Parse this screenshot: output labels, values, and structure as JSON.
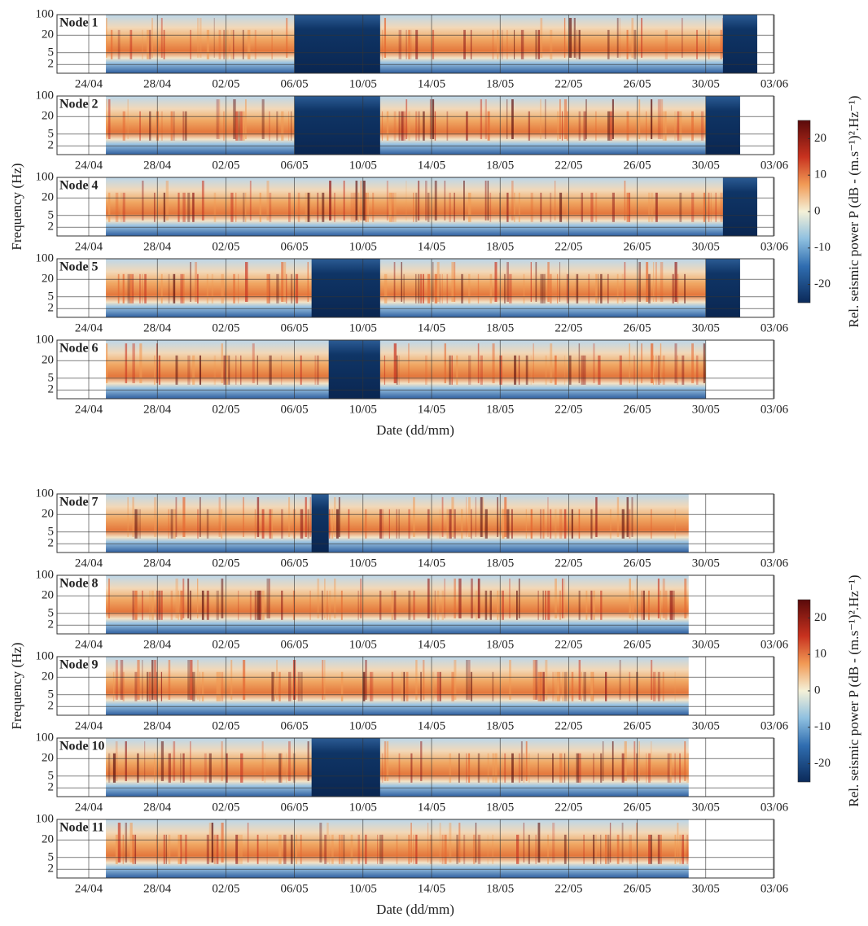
{
  "chart_data": [
    {
      "type": "heatmap",
      "x_label": "Date (dd/mm)",
      "y_label": "Frequency (Hz)",
      "xticks": [
        "24/04",
        "28/04",
        "02/05",
        "06/05",
        "10/05",
        "14/05",
        "18/05",
        "22/05",
        "26/05",
        "30/05",
        "03/06"
      ],
      "ylim": [
        1,
        100
      ],
      "yticks": [
        100,
        20,
        5,
        2
      ],
      "log_y": true,
      "grid": true,
      "colorbar": {
        "label": "Rel. seismic power P (dB - (m.s⁻¹)².Hz⁻¹)",
        "clim": [
          -25,
          25
        ],
        "ticks": [
          20,
          10,
          0,
          -10,
          -20
        ]
      },
      "panels": [
        {
          "name": "Node 1",
          "start": "25/04",
          "end": "02/06",
          "gaps": [
            [
              "06/05",
              "11/05"
            ],
            [
              "31/05",
              "02/06"
            ]
          ]
        },
        {
          "name": "Node 2",
          "start": "25/04",
          "end": "01/06",
          "gaps": [
            [
              "06/05",
              "11/05"
            ],
            [
              "30/05",
              "01/06"
            ]
          ]
        },
        {
          "name": "Node 4",
          "start": "25/04",
          "end": "02/06",
          "gaps": [
            [
              "31/05",
              "02/06"
            ]
          ]
        },
        {
          "name": "Node 5",
          "start": "25/04",
          "end": "01/06",
          "gaps": [
            [
              "07/05",
              "11/05"
            ],
            [
              "30/05",
              "01/06"
            ]
          ]
        },
        {
          "name": "Node 6",
          "start": "25/04",
          "end": "30/05",
          "gaps": [
            [
              "08/05",
              "11/05"
            ]
          ]
        }
      ]
    },
    {
      "type": "heatmap",
      "x_label": "Date (dd/mm)",
      "y_label": "Frequency (Hz)",
      "xticks": [
        "24/04",
        "28/04",
        "02/05",
        "06/05",
        "10/05",
        "14/05",
        "18/05",
        "22/05",
        "26/05",
        "30/05",
        "03/06"
      ],
      "ylim": [
        1,
        100
      ],
      "yticks": [
        100,
        20,
        5,
        2
      ],
      "log_y": true,
      "grid": true,
      "colorbar": {
        "label": "Rel. seismic power P (dB - (m.s⁻¹)².Hz⁻¹)",
        "clim": [
          -25,
          25
        ],
        "ticks": [
          20,
          10,
          0,
          -10,
          -20
        ]
      },
      "panels": [
        {
          "name": "Node 7",
          "start": "25/04",
          "end": "29/05",
          "gaps": [
            [
              "07/05",
              "08/05"
            ]
          ]
        },
        {
          "name": "Node 8",
          "start": "25/04",
          "end": "29/05",
          "gaps": []
        },
        {
          "name": "Node 9",
          "start": "25/04",
          "end": "29/05",
          "gaps": []
        },
        {
          "name": "Node 10",
          "start": "25/04",
          "end": "29/05",
          "gaps": [
            [
              "07/05",
              "11/05"
            ]
          ]
        },
        {
          "name": "Node 11",
          "start": "25/04",
          "end": "29/05",
          "gaps": []
        }
      ]
    }
  ]
}
